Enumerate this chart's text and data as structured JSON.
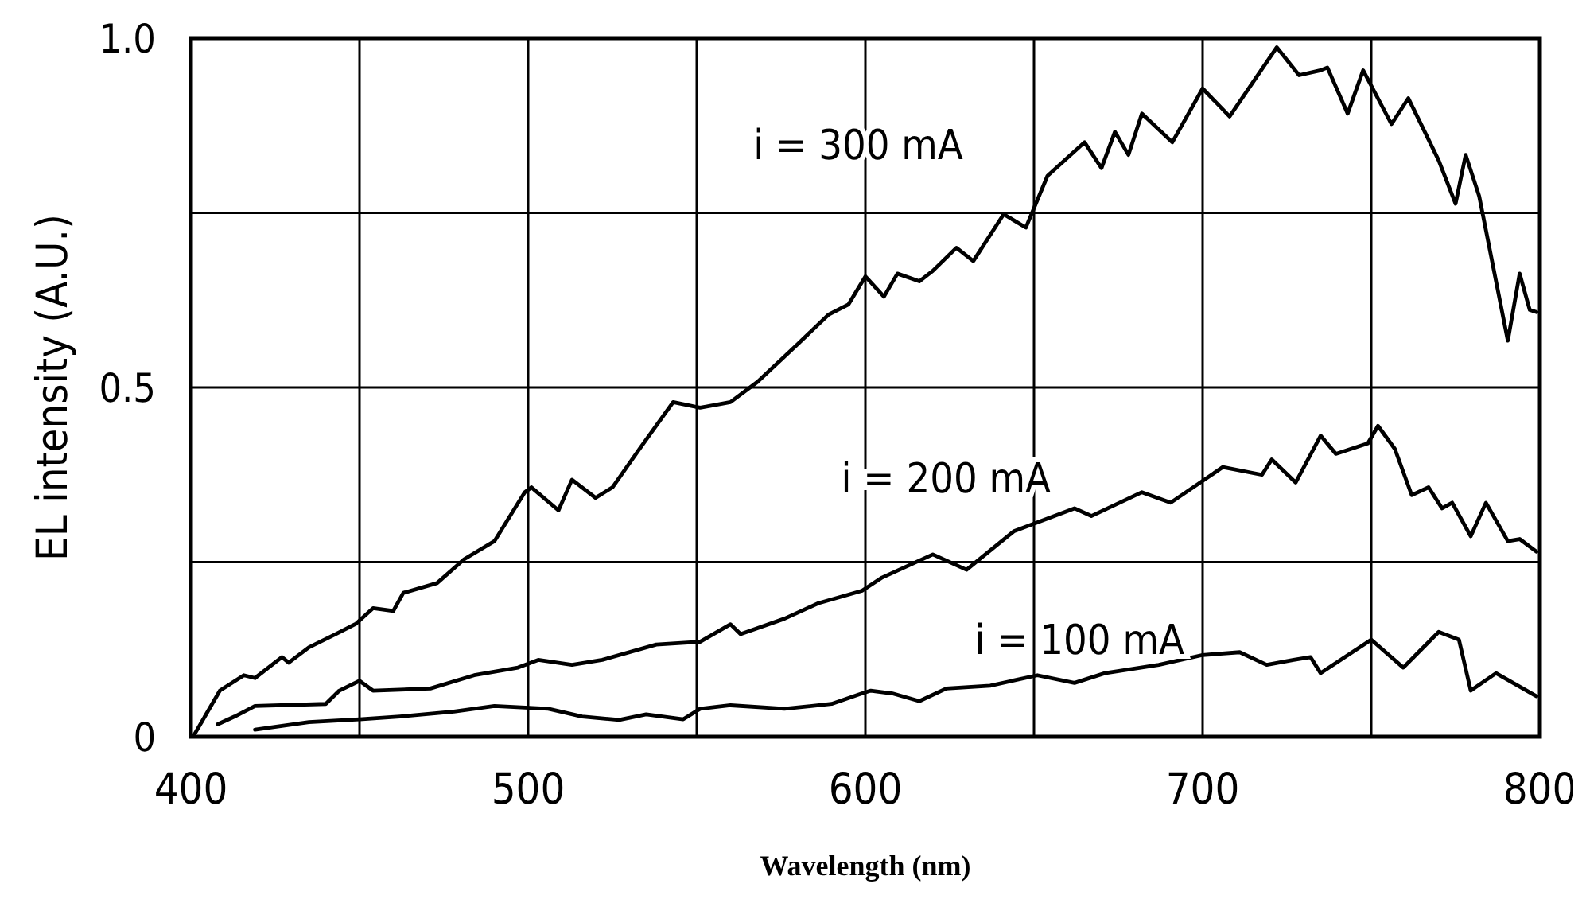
{
  "chart_data": {
    "type": "line",
    "xlabel": "Wavelength (nm)",
    "ylabel": "EL intensity (A.U.)",
    "xlim": [
      400,
      800
    ],
    "xticks": [
      400,
      {
        "value": 450,
        "label": null
      },
      500,
      {
        "value": 550,
        "label": null
      },
      600,
      {
        "value": 650,
        "label": null
      },
      700,
      {
        "value": 750,
        "label": null
      },
      800
    ],
    "ylim": [
      0,
      1.0
    ],
    "yticks": [
      0,
      {
        "value": 0.25,
        "label": null
      },
      0.5,
      {
        "value": 0.75,
        "label": null
      },
      {
        "value": 1.0,
        "label": "1.0"
      }
    ],
    "grid": true,
    "line_style": "solid",
    "marker": "none",
    "series": [
      {
        "name": "i = 300 mA",
        "color": "#000000",
        "x": [
          401,
          408.6,
          415.7,
          419,
          427,
          429,
          435,
          443,
          449,
          454,
          460,
          463,
          473,
          481,
          490,
          499,
          501,
          509,
          513,
          520,
          525,
          533,
          543,
          551,
          560,
          568,
          579.5,
          589,
          595,
          600,
          605.5,
          609.5,
          616,
          620,
          627,
          632,
          641,
          647.6,
          654,
          665,
          670,
          674,
          678,
          682,
          691,
          700,
          708,
          722,
          728.6,
          735,
          737,
          743,
          747.6,
          756,
          761,
          770,
          775,
          778,
          782,
          790.5,
          794,
          797,
          799
        ],
        "values": [
          0.003,
          0.066,
          0.088,
          0.084,
          0.114,
          0.106,
          0.128,
          0.147,
          0.162,
          0.184,
          0.18,
          0.206,
          0.22,
          0.254,
          0.28,
          0.35,
          0.357,
          0.324,
          0.368,
          0.342,
          0.357,
          0.412,
          0.479,
          0.471,
          0.479,
          0.508,
          0.56,
          0.604,
          0.619,
          0.659,
          0.63,
          0.663,
          0.652,
          0.667,
          0.7,
          0.681,
          0.748,
          0.729,
          0.803,
          0.851,
          0.814,
          0.866,
          0.833,
          0.892,
          0.851,
          0.928,
          0.888,
          0.987,
          0.947,
          0.954,
          0.958,
          0.892,
          0.954,
          0.877,
          0.914,
          0.825,
          0.763,
          0.833,
          0.774,
          0.567,
          0.663,
          0.611,
          0.608
        ]
      },
      {
        "name": "i = 200 mA",
        "color": "#000000",
        "x": [
          408,
          413,
          419,
          440,
          444,
          450,
          454,
          471,
          484,
          497,
          503,
          513,
          522,
          538,
          551,
          560,
          563,
          576,
          586,
          599,
          605,
          620,
          630,
          644,
          662,
          667,
          682,
          690.5,
          706,
          717.6,
          720.5,
          727.6,
          735,
          739.5,
          749,
          752,
          757,
          762,
          767,
          771,
          774,
          779.5,
          784,
          790.5,
          794,
          799
        ],
        "values": [
          0.018,
          0.029,
          0.044,
          0.047,
          0.066,
          0.08,
          0.066,
          0.069,
          0.088,
          0.099,
          0.11,
          0.103,
          0.11,
          0.132,
          0.136,
          0.161,
          0.147,
          0.169,
          0.191,
          0.209,
          0.228,
          0.261,
          0.239,
          0.294,
          0.327,
          0.316,
          0.35,
          0.335,
          0.386,
          0.375,
          0.397,
          0.364,
          0.431,
          0.405,
          0.42,
          0.445,
          0.412,
          0.346,
          0.357,
          0.327,
          0.335,
          0.287,
          0.335,
          0.28,
          0.283,
          0.265
        ]
      },
      {
        "name": "i = 100 mA",
        "color": "#000000",
        "x": [
          419,
          435,
          450,
          462,
          478,
          490,
          506,
          516,
          527,
          535,
          546,
          551,
          560,
          576,
          590,
          599,
          601.6,
          608,
          616,
          624,
          637,
          651,
          662,
          671,
          687,
          700,
          711,
          719,
          727,
          732,
          735,
          750,
          759.5,
          770,
          776,
          779.5,
          787,
          799
        ],
        "values": [
          0.01,
          0.021,
          0.025,
          0.029,
          0.036,
          0.044,
          0.04,
          0.029,
          0.024,
          0.032,
          0.025,
          0.04,
          0.045,
          0.04,
          0.047,
          0.062,
          0.066,
          0.062,
          0.051,
          0.069,
          0.073,
          0.088,
          0.077,
          0.091,
          0.103,
          0.117,
          0.121,
          0.103,
          0.11,
          0.114,
          0.091,
          0.139,
          0.099,
          0.15,
          0.139,
          0.066,
          0.091,
          0.058
        ]
      }
    ]
  }
}
